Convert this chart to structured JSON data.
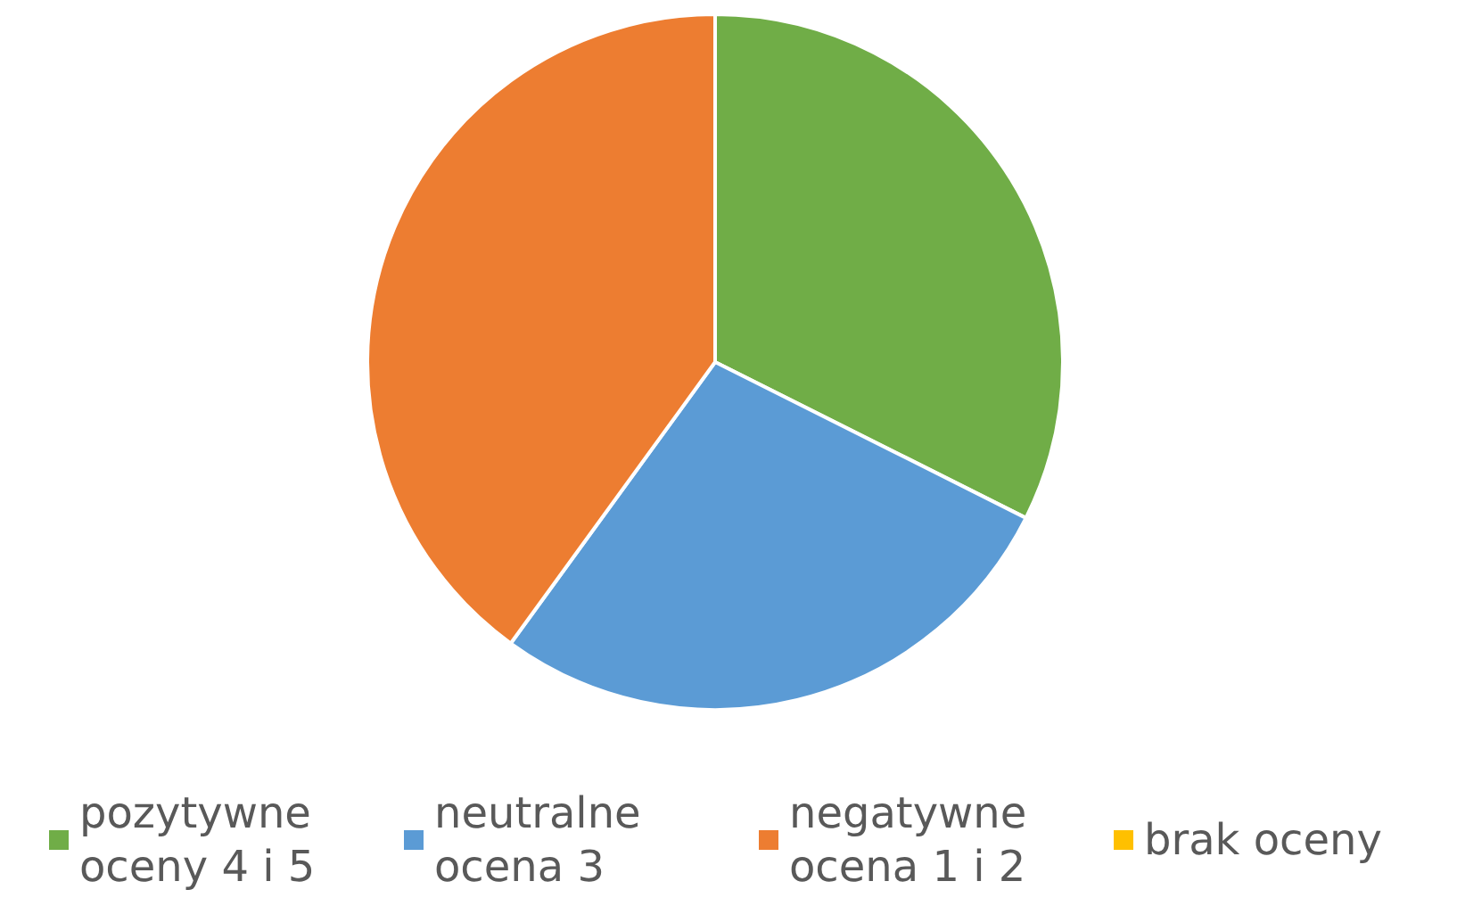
{
  "chart_data": {
    "type": "pie",
    "categories": [
      "pozytywne oceny 4 i 5",
      "neutralne ocena 3",
      "negatywne ocena 1 i 2",
      "brak oceny"
    ],
    "values": [
      32.4,
      27.6,
      40.0,
      0
    ],
    "colors": [
      "#70ad47",
      "#5b9bd5",
      "#ed7d31",
      "#ffc000"
    ],
    "legend": "bottom"
  }
}
